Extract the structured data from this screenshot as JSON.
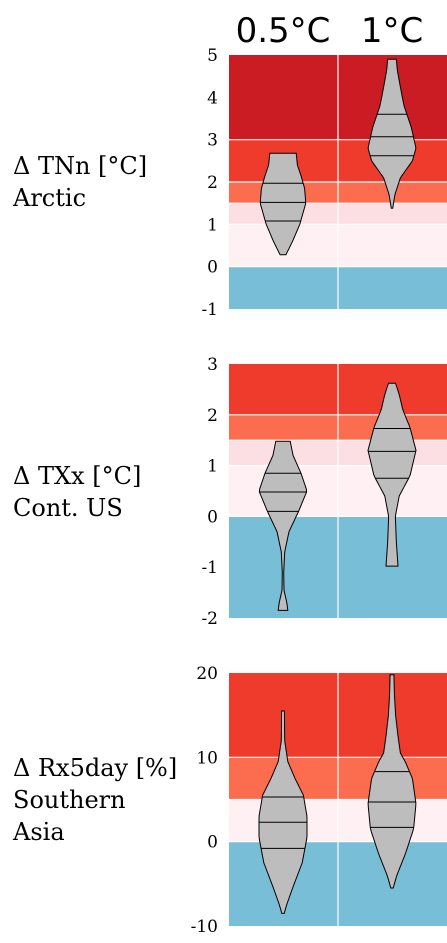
{
  "columns": [
    "0.5°C",
    "1°C"
  ],
  "colors": {
    "band_dark_red": "#cb1b23",
    "band_red": "#ef3b2c",
    "band_orange": "#fc6c4f",
    "band_light_pink": "#fcdfe2",
    "band_very_light_pink": "#fff0f3",
    "band_blue": "#77bed6",
    "violin_fill": "#bdbdbd"
  },
  "chart_data": [
    {
      "type": "violin",
      "label_lines": [
        "Δ TNn [°C]",
        "Arctic"
      ],
      "ylim": [
        -1,
        5
      ],
      "yticks": [
        5,
        4,
        3,
        2,
        1,
        0,
        -1
      ],
      "bands": [
        {
          "from": 3,
          "to": 5,
          "color": "band_dark_red"
        },
        {
          "from": 2,
          "to": 3,
          "color": "band_red"
        },
        {
          "from": 1.5,
          "to": 2,
          "color": "band_orange"
        },
        {
          "from": 1,
          "to": 1.5,
          "color": "band_light_pink"
        },
        {
          "from": 0,
          "to": 1,
          "color": "band_very_light_pink"
        },
        {
          "from": -1,
          "to": 0,
          "color": "band_blue"
        }
      ],
      "series": [
        {
          "column": "0.5°C",
          "min": 0.28,
          "max": 2.68,
          "quartiles": [
            1.08,
            1.52,
            1.97
          ],
          "profile": [
            [
              0.28,
              0.12
            ],
            [
              0.6,
              0.4
            ],
            [
              1.0,
              0.7
            ],
            [
              1.5,
              0.95
            ],
            [
              1.85,
              0.9
            ],
            [
              2.15,
              0.75
            ],
            [
              2.4,
              0.6
            ],
            [
              2.68,
              0.55
            ]
          ]
        },
        {
          "column": "1°C",
          "min": 1.38,
          "max": 4.9,
          "quartiles": [
            2.62,
            3.07,
            3.6
          ],
          "profile": [
            [
              1.38,
              0.03
            ],
            [
              1.7,
              0.12
            ],
            [
              2.1,
              0.35
            ],
            [
              2.5,
              0.85
            ],
            [
              2.8,
              1.0
            ],
            [
              3.3,
              0.8
            ],
            [
              3.8,
              0.5
            ],
            [
              4.3,
              0.33
            ],
            [
              4.65,
              0.22
            ],
            [
              4.9,
              0.18
            ]
          ]
        }
      ]
    },
    {
      "type": "violin",
      "label_lines": [
        "Δ TXx [°C]",
        "Cont. US"
      ],
      "ylim": [
        -2,
        3
      ],
      "yticks": [
        3,
        2,
        1,
        0,
        -1,
        -2
      ],
      "bands": [
        {
          "from": 2,
          "to": 3,
          "color": "band_red"
        },
        {
          "from": 1.5,
          "to": 2,
          "color": "band_orange"
        },
        {
          "from": 1,
          "to": 1.5,
          "color": "band_light_pink"
        },
        {
          "from": 0,
          "to": 1,
          "color": "band_very_light_pink"
        },
        {
          "from": -2,
          "to": 0,
          "color": "band_blue"
        }
      ],
      "series": [
        {
          "column": "0.5°C",
          "min": -1.85,
          "max": 1.48,
          "quartiles": [
            0.1,
            0.48,
            0.85
          ],
          "profile": [
            [
              -1.85,
              0.2
            ],
            [
              -1.7,
              0.16
            ],
            [
              -1.45,
              0.04
            ],
            [
              -1.1,
              0.03
            ],
            [
              -0.7,
              0.07
            ],
            [
              -0.3,
              0.25
            ],
            [
              0.1,
              0.65
            ],
            [
              0.5,
              1.0
            ],
            [
              0.85,
              0.75
            ],
            [
              1.2,
              0.42
            ],
            [
              1.48,
              0.3
            ]
          ]
        },
        {
          "column": "1°C",
          "min": -0.98,
          "max": 2.62,
          "quartiles": [
            0.75,
            1.28,
            1.73
          ],
          "profile": [
            [
              -0.98,
              0.25
            ],
            [
              -0.5,
              0.18
            ],
            [
              0.0,
              0.14
            ],
            [
              0.4,
              0.3
            ],
            [
              0.8,
              0.75
            ],
            [
              1.3,
              1.0
            ],
            [
              1.75,
              0.75
            ],
            [
              2.1,
              0.45
            ],
            [
              2.4,
              0.3
            ],
            [
              2.62,
              0.15
            ]
          ]
        }
      ]
    },
    {
      "type": "violin",
      "label_lines": [
        "Δ Rx5day [%]",
        "Southern",
        "Asia"
      ],
      "ylim": [
        -10,
        20
      ],
      "yticks": [
        20,
        10,
        0,
        -10
      ],
      "bands": [
        {
          "from": 10,
          "to": 20,
          "color": "band_red"
        },
        {
          "from": 5,
          "to": 10,
          "color": "band_orange"
        },
        {
          "from": 0,
          "to": 5,
          "color": "band_very_light_pink"
        },
        {
          "from": -10,
          "to": 0,
          "color": "band_blue"
        }
      ],
      "series": [
        {
          "column": "0.5°C",
          "min": -8.5,
          "max": 15.5,
          "quartiles": [
            -0.8,
            2.3,
            5.3
          ],
          "profile": [
            [
              -8.5,
              0.05
            ],
            [
              -7.5,
              0.15
            ],
            [
              -5.5,
              0.4
            ],
            [
              -2.5,
              0.8
            ],
            [
              0.5,
              1.0
            ],
            [
              3.0,
              1.0
            ],
            [
              5.5,
              0.85
            ],
            [
              7.5,
              0.5
            ],
            [
              9.5,
              0.2
            ],
            [
              12,
              0.07
            ],
            [
              15.5,
              0.06
            ]
          ]
        },
        {
          "column": "1°C",
          "min": -5.5,
          "max": 19.8,
          "quartiles": [
            1.7,
            4.7,
            8.3
          ],
          "profile": [
            [
              -5.5,
              0.05
            ],
            [
              -4,
              0.2
            ],
            [
              -1.5,
              0.55
            ],
            [
              1.5,
              0.9
            ],
            [
              4.5,
              1.0
            ],
            [
              7.5,
              0.85
            ],
            [
              9.5,
              0.55
            ],
            [
              10.5,
              0.35
            ],
            [
              12.5,
              0.25
            ],
            [
              15,
              0.15
            ],
            [
              17.5,
              0.1
            ],
            [
              19.8,
              0.08
            ]
          ]
        }
      ]
    }
  ]
}
